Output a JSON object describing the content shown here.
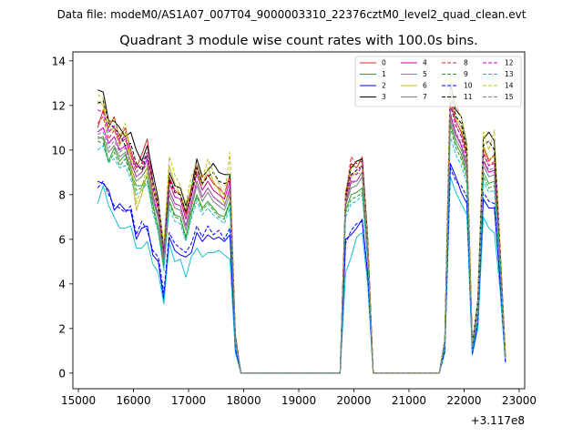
{
  "chart_data": {
    "type": "line",
    "suptitle": "Data file: modeM0/AS1A07_007T04_9000003310_22376cztM0_level2_quad_clean.evt",
    "title": "Quadrant 3 module wise count rates with 100.0s bins.",
    "xlabel": "",
    "ylabel": "",
    "x_offset_label": "+3.117e8",
    "xlim": [
      14900,
      23100
    ],
    "ylim": [
      -0.7,
      14.4
    ],
    "xticks": [
      15000,
      16000,
      17000,
      18000,
      19000,
      20000,
      21000,
      22000,
      23000
    ],
    "yticks": [
      0,
      2,
      4,
      6,
      8,
      10,
      12,
      14
    ],
    "xticklabels": [
      "15000",
      "16000",
      "17000",
      "18000",
      "19000",
      "20000",
      "21000",
      "22000",
      "23000"
    ],
    "yticklabels": [
      "0",
      "2",
      "4",
      "6",
      "8",
      "10",
      "12",
      "14"
    ],
    "grid": false,
    "legend_position": "top-right",
    "x": [
      15350,
      15450,
      15550,
      15650,
      15750,
      15850,
      15950,
      16050,
      16150,
      16250,
      16350,
      16450,
      16550,
      16650,
      16750,
      16850,
      16950,
      17050,
      17150,
      17250,
      17350,
      17450,
      17550,
      17650,
      17750,
      17850,
      17950,
      18050,
      19750,
      19850,
      19950,
      20050,
      20150,
      20250,
      20350,
      21550,
      21650,
      21750,
      21850,
      21950,
      22050,
      22150,
      22250,
      22350,
      22450,
      22550,
      22650,
      22750
    ],
    "series": [
      {
        "name": "0",
        "color": "#d62728",
        "dash": false,
        "values": [
          11.0,
          11.8,
          11.0,
          11.5,
          10.5,
          11.0,
          10.0,
          9.2,
          9.8,
          10.5,
          8.6,
          7.6,
          5.4,
          8.8,
          8.2,
          8.0,
          7.1,
          8.2,
          9.3,
          8.5,
          8.9,
          8.5,
          8.3,
          8.0,
          8.9,
          1.6,
          0.0,
          0.0,
          0.0,
          8.1,
          9.4,
          9.2,
          9.7,
          6.0,
          0.0,
          0.0,
          1.4,
          12.2,
          11.3,
          10.8,
          9.8,
          1.3,
          3.2,
          10.1,
          9.5,
          9.8,
          5.5,
          0.8
        ]
      },
      {
        "name": "1",
        "color": "#2ca02c",
        "dash": false,
        "values": [
          10.6,
          10.5,
          9.5,
          10.1,
          9.5,
          9.8,
          9.0,
          8.4,
          8.4,
          8.8,
          7.6,
          6.5,
          4.8,
          7.7,
          7.1,
          7.0,
          6.1,
          7.2,
          8.0,
          7.4,
          7.7,
          7.4,
          7.1,
          7.0,
          7.7,
          1.4,
          0.0,
          0.0,
          0.0,
          7.3,
          8.0,
          8.1,
          8.3,
          5.2,
          0.0,
          0.0,
          1.3,
          11.2,
          10.3,
          9.8,
          8.9,
          1.1,
          2.8,
          9.0,
          8.5,
          8.6,
          4.9,
          0.7
        ]
      },
      {
        "name": "2",
        "color": "#0000ff",
        "dash": false,
        "values": [
          8.6,
          8.5,
          8.2,
          7.3,
          7.6,
          7.3,
          7.3,
          6.0,
          6.5,
          6.6,
          5.3,
          5.0,
          3.3,
          6.1,
          5.5,
          5.3,
          5.2,
          5.4,
          6.3,
          5.9,
          6.2,
          6.0,
          6.1,
          5.9,
          6.2,
          1.0,
          0.0,
          0.0,
          0.0,
          6.0,
          6.2,
          6.5,
          6.9,
          4.4,
          0.0,
          0.0,
          1.0,
          9.4,
          8.8,
          8.1,
          7.6,
          0.9,
          2.2,
          7.8,
          7.4,
          7.4,
          4.2,
          0.5
        ]
      },
      {
        "name": "3",
        "color": "#000000",
        "dash": false,
        "values": [
          12.7,
          12.6,
          11.3,
          11.3,
          11.0,
          10.6,
          10.8,
          10.0,
          9.5,
          10.2,
          9.0,
          7.8,
          5.6,
          9.0,
          8.4,
          8.3,
          7.5,
          8.3,
          9.6,
          8.8,
          9.1,
          9.4,
          9.0,
          8.9,
          8.9,
          1.7,
          0.0,
          0.0,
          0.0,
          8.0,
          9.2,
          9.5,
          9.6,
          6.1,
          0.0,
          0.0,
          1.5,
          13.0,
          11.8,
          11.5,
          10.2,
          1.3,
          3.3,
          10.5,
          10.8,
          10.4,
          5.8,
          0.8
        ]
      },
      {
        "name": "4",
        "color": "#bf00bf",
        "dash": false,
        "values": [
          10.8,
          11.0,
          10.3,
          10.6,
          10.0,
          10.2,
          9.5,
          8.8,
          9.0,
          9.6,
          8.0,
          7.0,
          5.1,
          8.2,
          7.6,
          7.5,
          6.6,
          7.6,
          8.6,
          7.9,
          8.3,
          7.9,
          7.7,
          7.5,
          8.3,
          1.5,
          0.0,
          0.0,
          0.0,
          7.6,
          8.6,
          8.6,
          9.0,
          5.6,
          0.0,
          0.0,
          1.4,
          11.6,
          10.7,
          10.2,
          9.3,
          1.2,
          3.0,
          9.5,
          9.0,
          9.1,
          5.2,
          0.7
        ]
      },
      {
        "name": "5",
        "color": "#17becf",
        "dash": false,
        "values": [
          7.6,
          8.4,
          7.5,
          7.0,
          6.5,
          6.5,
          6.6,
          5.6,
          5.6,
          5.9,
          4.9,
          4.5,
          3.1,
          5.8,
          5.0,
          5.1,
          4.3,
          5.2,
          5.6,
          5.2,
          5.4,
          5.4,
          5.5,
          5.3,
          5.1,
          0.9,
          0.0,
          0.0,
          0.0,
          4.5,
          5.2,
          6.1,
          6.3,
          4.0,
          0.0,
          0.0,
          0.9,
          8.8,
          8.1,
          7.6,
          7.1,
          0.8,
          2.0,
          7.0,
          6.5,
          6.3,
          3.8,
          0.5
        ]
      },
      {
        "name": "6",
        "color": "#bcbd22",
        "dash": false,
        "values": [
          12.2,
          12.0,
          10.8,
          11.0,
          10.2,
          10.8,
          9.3,
          7.3,
          8.0,
          9.0,
          8.2,
          7.4,
          5.5,
          9.3,
          8.5,
          8.0,
          7.3,
          8.4,
          9.0,
          8.4,
          9.2,
          8.6,
          8.2,
          7.6,
          8.1,
          1.5,
          0.0,
          0.0,
          0.0,
          7.8,
          8.8,
          9.0,
          8.9,
          5.8,
          0.0,
          0.0,
          1.4,
          12.6,
          11.5,
          11.0,
          9.9,
          1.2,
          3.1,
          10.2,
          9.6,
          9.7,
          5.5,
          0.8
        ]
      },
      {
        "name": "7",
        "color": "#7f7f7f",
        "dash": false,
        "values": [
          10.5,
          10.6,
          9.9,
          10.2,
          9.7,
          9.9,
          9.2,
          8.6,
          8.8,
          9.2,
          7.8,
          6.9,
          5.0,
          8.0,
          7.4,
          7.3,
          6.4,
          7.4,
          8.4,
          7.7,
          8.1,
          7.7,
          7.5,
          7.3,
          8.0,
          1.4,
          0.0,
          0.0,
          0.0,
          7.5,
          8.3,
          8.4,
          8.8,
          5.5,
          0.0,
          0.0,
          1.3,
          11.4,
          10.5,
          10.0,
          9.1,
          1.1,
          2.9,
          9.3,
          8.8,
          8.9,
          5.1,
          0.7
        ]
      },
      {
        "name": "8",
        "color": "#d62728",
        "dash": true,
        "values": [
          11.2,
          11.5,
          10.5,
          10.9,
          10.3,
          10.5,
          9.8,
          9.0,
          9.3,
          9.9,
          8.3,
          7.3,
          5.3,
          8.6,
          7.9,
          7.8,
          6.9,
          7.9,
          9.0,
          8.2,
          8.6,
          8.2,
          8.0,
          7.8,
          8.6,
          1.6,
          0.0,
          0.0,
          0.0,
          7.9,
          9.7,
          9.4,
          9.5,
          5.9,
          0.0,
          0.0,
          1.4,
          12.1,
          11.1,
          10.6,
          9.6,
          1.2,
          3.1,
          9.9,
          9.3,
          9.5,
          5.4,
          0.8
        ]
      },
      {
        "name": "9",
        "color": "#2ca02c",
        "dash": true,
        "values": [
          10.4,
          10.3,
          9.4,
          9.9,
          9.3,
          9.6,
          8.9,
          8.2,
          8.3,
          8.6,
          7.4,
          6.4,
          4.7,
          7.6,
          7.0,
          6.9,
          6.0,
          7.1,
          7.9,
          7.3,
          7.6,
          7.3,
          7.0,
          6.9,
          7.6,
          1.4,
          0.0,
          0.0,
          0.0,
          7.2,
          7.8,
          7.9,
          8.1,
          5.1,
          0.0,
          0.0,
          1.3,
          11.0,
          10.1,
          9.6,
          8.7,
          1.1,
          2.7,
          8.8,
          8.3,
          8.4,
          4.8,
          0.7
        ]
      },
      {
        "name": "10",
        "color": "#0000ff",
        "dash": true,
        "values": [
          8.3,
          8.6,
          8.0,
          7.5,
          7.4,
          7.2,
          7.5,
          6.2,
          6.8,
          6.4,
          5.5,
          5.2,
          3.6,
          6.3,
          5.8,
          5.6,
          5.4,
          5.8,
          6.6,
          6.1,
          6.6,
          6.2,
          6.4,
          6.0,
          6.5,
          1.1,
          0.0,
          0.0,
          0.0,
          5.8,
          6.4,
          6.7,
          6.8,
          4.5,
          0.0,
          0.0,
          1.0,
          9.2,
          8.6,
          8.4,
          7.9,
          0.9,
          2.3,
          8.1,
          7.7,
          7.6,
          4.3,
          0.5
        ]
      },
      {
        "name": "11",
        "color": "#000000",
        "dash": true,
        "values": [
          12.1,
          12.2,
          11.2,
          11.0,
          10.7,
          10.2,
          10.3,
          9.4,
          9.1,
          9.8,
          8.6,
          7.5,
          5.4,
          8.7,
          8.1,
          8.0,
          7.2,
          8.0,
          9.2,
          8.5,
          8.8,
          9.0,
          8.6,
          8.5,
          8.6,
          1.6,
          0.0,
          0.0,
          0.0,
          7.8,
          8.9,
          9.1,
          9.3,
          5.9,
          0.0,
          0.0,
          1.4,
          12.6,
          11.5,
          11.2,
          9.9,
          1.2,
          3.2,
          10.2,
          10.4,
          10.0,
          5.6,
          0.8
        ]
      },
      {
        "name": "12",
        "color": "#bf00bf",
        "dash": true,
        "values": [
          11.8,
          11.7,
          10.8,
          11.1,
          10.4,
          10.6,
          9.8,
          9.2,
          9.4,
          9.9,
          8.4,
          7.3,
          5.3,
          8.5,
          7.9,
          7.8,
          6.9,
          7.9,
          8.9,
          8.2,
          8.6,
          8.2,
          8.0,
          7.8,
          8.6,
          1.6,
          0.0,
          0.0,
          0.0,
          7.9,
          8.9,
          8.9,
          9.3,
          5.8,
          0.0,
          0.0,
          1.4,
          12.0,
          11.1,
          10.6,
          9.6,
          1.2,
          3.1,
          9.8,
          9.3,
          9.4,
          5.4,
          0.7
        ]
      },
      {
        "name": "13",
        "color": "#17becf",
        "dash": true,
        "values": [
          10.0,
          10.2,
          9.5,
          9.6,
          9.2,
          9.3,
          8.7,
          8.0,
          8.2,
          8.5,
          7.2,
          6.3,
          4.6,
          7.4,
          6.8,
          6.7,
          5.9,
          6.9,
          7.7,
          7.1,
          7.4,
          7.1,
          6.9,
          6.7,
          7.4,
          1.3,
          0.0,
          0.0,
          0.0,
          7.0,
          7.6,
          7.7,
          8.0,
          5.0,
          0.0,
          0.0,
          1.2,
          10.6,
          9.8,
          9.3,
          8.5,
          1.0,
          2.6,
          8.6,
          8.1,
          8.2,
          4.7,
          0.6
        ]
      },
      {
        "name": "14",
        "color": "#bcbd22",
        "dash": true,
        "values": [
          12.5,
          12.3,
          11.2,
          11.4,
          10.6,
          11.2,
          9.7,
          7.6,
          8.3,
          9.3,
          8.5,
          7.7,
          5.8,
          9.7,
          8.9,
          8.4,
          7.6,
          8.8,
          9.4,
          8.7,
          9.6,
          9.0,
          8.5,
          7.9,
          9.9,
          1.6,
          0.0,
          0.0,
          0.0,
          8.2,
          9.2,
          9.3,
          9.2,
          6.0,
          0.0,
          0.0,
          1.5,
          13.3,
          12.0,
          11.5,
          10.3,
          1.3,
          3.3,
          10.8,
          10.0,
          10.9,
          5.8,
          0.8
        ]
      },
      {
        "name": "15",
        "color": "#7f7f7f",
        "dash": true,
        "values": [
          10.7,
          10.8,
          10.1,
          10.4,
          9.9,
          10.1,
          9.4,
          8.8,
          9.0,
          9.4,
          8.0,
          7.1,
          5.2,
          8.2,
          7.6,
          7.5,
          6.6,
          7.6,
          8.6,
          7.9,
          8.3,
          7.9,
          7.7,
          7.5,
          8.2,
          1.5,
          0.0,
          0.0,
          0.0,
          7.6,
          8.5,
          8.6,
          9.0,
          5.6,
          0.0,
          0.0,
          1.4,
          11.7,
          10.8,
          10.3,
          9.4,
          1.2,
          3.0,
          9.6,
          9.1,
          9.2,
          5.3,
          0.7
        ]
      }
    ]
  }
}
